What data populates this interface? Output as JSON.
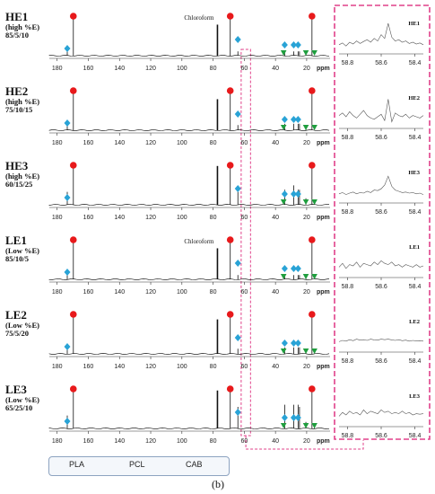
{
  "colors": {
    "pla": "#e8191b",
    "pcl": "#29a3d6",
    "cab": "#1f9e3e",
    "highlight": "#e0418a"
  },
  "chart_data": {
    "type": "line",
    "title": "",
    "caption": "(b)",
    "main_axis": {
      "xlim": [
        185,
        5
      ],
      "ticks": [
        180,
        160,
        140,
        120,
        100,
        80,
        60,
        40,
        20
      ],
      "unit": "ppm",
      "reversed": true
    },
    "zoom_axis": {
      "xlim": [
        58.85,
        58.35
      ],
      "ticks": [
        58.8,
        58.6,
        58.4
      ],
      "reversed": true
    },
    "highlight_region_ppm": [
      62,
      56
    ],
    "legend": [
      {
        "key": "pla",
        "name": "PLA",
        "marker": "circle"
      },
      {
        "key": "pcl",
        "name": "PCL",
        "marker": "diamond"
      },
      {
        "key": "cab",
        "name": "CAB",
        "marker": "triangle-down"
      }
    ],
    "spectra": [
      {
        "id": "HE1",
        "group": "(high %E)",
        "ratio": "85/5/10",
        "solvent_label": "Chloroform",
        "zoom_label": "HE1",
        "peaks": [
          [
            173.5,
            0.12
          ],
          [
            169.6,
            0.88
          ],
          [
            77.2,
            0.72
          ],
          [
            69.0,
            0.88
          ],
          [
            64.1,
            0.1
          ],
          [
            34.1,
            0.1
          ],
          [
            28.3,
            0.1
          ],
          [
            25.5,
            0.1
          ],
          [
            24.6,
            0.1
          ],
          [
            16.6,
            0.88
          ],
          [
            20.5,
            0.08
          ]
        ],
        "zoom_profile": [
          0.15,
          0.22,
          0.1,
          0.25,
          0.18,
          0.3,
          0.2,
          0.28,
          0.35,
          0.25,
          0.4,
          0.3,
          0.55,
          0.4,
          1.0,
          0.45,
          0.3,
          0.35,
          0.25,
          0.3,
          0.2,
          0.25,
          0.18,
          0.22,
          0.15
        ]
      },
      {
        "id": "HE2",
        "group": "(high %E)",
        "ratio": "75/10/15",
        "solvent_label": "",
        "zoom_label": "HE2",
        "peaks": [
          [
            173.5,
            0.12
          ],
          [
            169.6,
            0.88
          ],
          [
            77.2,
            0.72
          ],
          [
            69.0,
            0.88
          ],
          [
            64.1,
            0.12
          ],
          [
            34.1,
            0.15
          ],
          [
            28.3,
            0.15
          ],
          [
            25.5,
            0.15
          ],
          [
            24.6,
            0.15
          ],
          [
            16.6,
            0.88
          ],
          [
            20.5,
            0.1
          ]
        ],
        "zoom_profile": [
          0.3,
          0.4,
          0.25,
          0.45,
          0.3,
          0.2,
          0.35,
          0.5,
          0.3,
          0.2,
          0.15,
          0.25,
          0.35,
          0.1,
          0.95,
          0.05,
          0.4,
          0.3,
          0.25,
          0.35,
          0.2,
          0.3,
          0.25,
          0.2,
          0.3
        ]
      },
      {
        "id": "HE3",
        "group": "(high %E)",
        "ratio": "60/15/25",
        "solvent_label": "",
        "zoom_label": "HE3",
        "peaks": [
          [
            173.5,
            0.3
          ],
          [
            169.6,
            0.88
          ],
          [
            77.2,
            0.9
          ],
          [
            69.0,
            0.88
          ],
          [
            64.1,
            0.3
          ],
          [
            34.1,
            0.35
          ],
          [
            28.3,
            0.45
          ],
          [
            25.5,
            0.35
          ],
          [
            24.6,
            0.35
          ],
          [
            16.6,
            0.88
          ],
          [
            20.5,
            0.15
          ],
          [
            15.0,
            0.1
          ]
        ],
        "zoom_profile": [
          0.15,
          0.2,
          0.12,
          0.18,
          0.22,
          0.15,
          0.2,
          0.18,
          0.25,
          0.2,
          0.3,
          0.28,
          0.35,
          0.5,
          0.85,
          0.45,
          0.3,
          0.25,
          0.2,
          0.22,
          0.18,
          0.2,
          0.15,
          0.18,
          0.12
        ]
      },
      {
        "id": "LE1",
        "group": "(Low %E)",
        "ratio": "85/10/5",
        "solvent_label": "Chloroform",
        "zoom_label": "LE1",
        "peaks": [
          [
            173.5,
            0.12
          ],
          [
            169.6,
            0.88
          ],
          [
            77.2,
            0.72
          ],
          [
            69.0,
            0.88
          ],
          [
            64.1,
            0.1
          ],
          [
            34.1,
            0.1
          ],
          [
            28.3,
            0.1
          ],
          [
            25.5,
            0.1
          ],
          [
            24.6,
            0.1
          ],
          [
            16.6,
            0.88
          ],
          [
            20.5,
            0.05
          ]
        ],
        "zoom_profile": [
          0.2,
          0.35,
          0.15,
          0.3,
          0.25,
          0.4,
          0.2,
          0.35,
          0.3,
          0.25,
          0.4,
          0.3,
          0.45,
          0.35,
          0.3,
          0.4,
          0.25,
          0.3,
          0.2,
          0.3,
          0.25,
          0.2,
          0.3,
          0.2,
          0.25
        ]
      },
      {
        "id": "LE2",
        "group": "(Low %E)",
        "ratio": "75/5/20",
        "solvent_label": "",
        "zoom_label": "LE2",
        "peaks": [
          [
            173.5,
            0.12
          ],
          [
            169.6,
            0.88
          ],
          [
            77.2,
            0.8
          ],
          [
            69.0,
            0.88
          ],
          [
            64.1,
            0.12
          ],
          [
            34.1,
            0.15
          ],
          [
            28.3,
            0.15
          ],
          [
            25.5,
            0.15
          ],
          [
            24.6,
            0.15
          ],
          [
            16.6,
            0.88
          ],
          [
            20.5,
            0.1
          ]
        ],
        "zoom_profile": [
          0.2,
          0.25,
          0.22,
          0.28,
          0.24,
          0.3,
          0.26,
          0.28,
          0.25,
          0.3,
          0.27,
          0.26,
          0.3,
          0.28,
          0.3,
          0.27,
          0.25,
          0.28,
          0.24,
          0.26,
          0.22,
          0.25,
          0.23,
          0.24,
          0.22
        ]
      },
      {
        "id": "LE3",
        "group": "(Low %E)",
        "ratio": "65/25/10",
        "solvent_label": "",
        "zoom_label": "LE3",
        "peaks": [
          [
            173.5,
            0.3
          ],
          [
            169.6,
            0.88
          ],
          [
            77.2,
            0.88
          ],
          [
            69.0,
            0.88
          ],
          [
            64.1,
            0.5
          ],
          [
            34.1,
            0.55
          ],
          [
            28.3,
            0.55
          ],
          [
            25.5,
            0.55
          ],
          [
            24.6,
            0.5
          ],
          [
            16.6,
            0.88
          ],
          [
            20.5,
            0.15
          ],
          [
            15.0,
            0.1
          ]
        ],
        "zoom_profile": [
          0.2,
          0.35,
          0.25,
          0.4,
          0.3,
          0.35,
          0.25,
          0.45,
          0.3,
          0.4,
          0.35,
          0.3,
          0.45,
          0.35,
          0.4,
          0.3,
          0.35,
          0.3,
          0.4,
          0.3,
          0.35,
          0.25,
          0.3,
          0.28,
          0.3
        ]
      }
    ],
    "markers": {
      "pla": [
        169.6,
        69.0,
        16.6
      ],
      "pcl": [
        173.5,
        64.1,
        34.1,
        28.3,
        25.5
      ],
      "cab": [
        34.8,
        20.5,
        15.0
      ]
    }
  }
}
